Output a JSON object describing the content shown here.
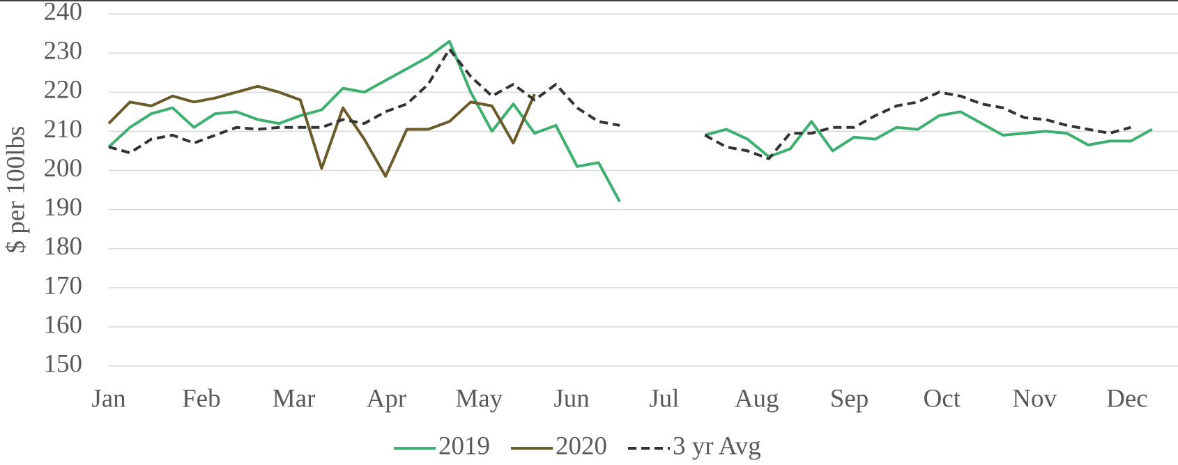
{
  "chart_data": {
    "type": "line",
    "y_label": "$ per 100lbs",
    "x": [
      0,
      0.23,
      0.46,
      0.69,
      0.92,
      1.15,
      1.38,
      1.61,
      1.84,
      2.07,
      2.3,
      2.53,
      2.76,
      2.99,
      3.22,
      3.45,
      3.68,
      3.91,
      4.14,
      4.37,
      4.6,
      4.83,
      5.06,
      5.29,
      5.52,
      5.75,
      5.98,
      6.21,
      6.44,
      6.67,
      6.9,
      7.13,
      7.36,
      7.59,
      7.82,
      8.05,
      8.28,
      8.51,
      8.74,
      8.97,
      9.2,
      9.43,
      9.66,
      9.89,
      10.12,
      10.35,
      10.58,
      10.81,
      11.04,
      11.27
    ],
    "series": [
      {
        "name": "2019",
        "color": "#3daf6e",
        "dash": false,
        "values": [
          206,
          211,
          214.5,
          216,
          211,
          214.5,
          215,
          213,
          212,
          214,
          215.5,
          221,
          220,
          223,
          226,
          229,
          233,
          220,
          210,
          217,
          209.5,
          211.5,
          201,
          202,
          192,
          null,
          null,
          null,
          209,
          210.5,
          208,
          203.5,
          205.5,
          212.5,
          205,
          208.5,
          208,
          211,
          210.5,
          214,
          215,
          212,
          209,
          209.5,
          210,
          209.5,
          206.5,
          207.5,
          207.5,
          210.5
        ]
      },
      {
        "name": "2020",
        "color": "#6b5a2a",
        "dash": false,
        "values": [
          212,
          217.5,
          216.5,
          219,
          217.5,
          218.5,
          220,
          221.5,
          220,
          218,
          200.5,
          216,
          208,
          198.5,
          210.5,
          210.5,
          212.5,
          217.5,
          216.5,
          207,
          219.5,
          null,
          null,
          null,
          null,
          null,
          null,
          null,
          null,
          null,
          null,
          null,
          null,
          null,
          null,
          null,
          null,
          null,
          null,
          null,
          null,
          null,
          null,
          null,
          null,
          null,
          null,
          null,
          null,
          null
        ]
      },
      {
        "name": "3 yr Avg",
        "color": "#333333",
        "dash": true,
        "values": [
          206,
          204.5,
          208,
          209,
          207,
          209,
          211,
          210.5,
          211,
          211,
          211,
          213,
          212,
          215,
          217,
          222,
          231,
          224,
          219,
          222,
          218,
          222,
          216,
          212.5,
          211.5,
          null,
          null,
          null,
          209,
          206,
          205,
          203,
          209.5,
          209.5,
          211,
          211,
          214,
          216.5,
          217.5,
          220,
          219,
          217,
          216,
          213.5,
          213,
          211.5,
          210.5,
          209.5,
          211,
          null
        ]
      }
    ],
    "xlim": [
      0,
      11.55
    ],
    "xticks": [
      {
        "value": 0,
        "label": "Jan"
      },
      {
        "value": 1,
        "label": "Feb"
      },
      {
        "value": 2,
        "label": "Mar"
      },
      {
        "value": 3,
        "label": "Apr"
      },
      {
        "value": 4,
        "label": "May"
      },
      {
        "value": 5,
        "label": "Jun"
      },
      {
        "value": 6,
        "label": "Jul"
      },
      {
        "value": 7,
        "label": "Aug"
      },
      {
        "value": 8,
        "label": "Sep"
      },
      {
        "value": 9,
        "label": "Oct"
      },
      {
        "value": 10,
        "label": "Nov"
      },
      {
        "value": 11,
        "label": "Dec"
      }
    ],
    "ylim": [
      150,
      240
    ],
    "yticks": [
      150,
      160,
      170,
      180,
      190,
      200,
      210,
      220,
      230,
      240
    ],
    "grid": true,
    "legend": "bottom"
  }
}
